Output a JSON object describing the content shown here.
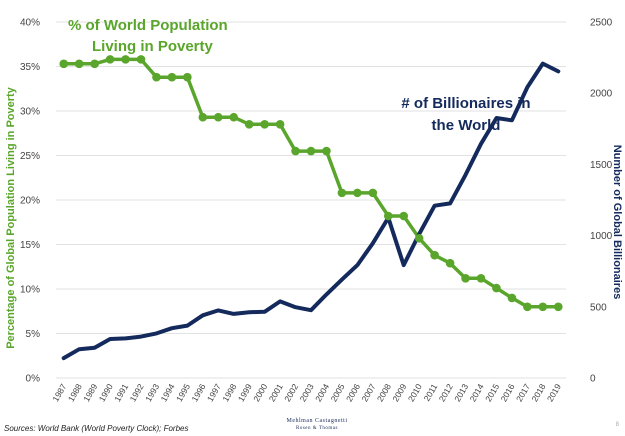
{
  "chart_data": {
    "type": "line",
    "x": [
      "1987",
      "1988",
      "1989",
      "1990",
      "1991",
      "1992",
      "1993",
      "1994",
      "1995",
      "1996",
      "1997",
      "1998",
      "1999",
      "2000",
      "2001",
      "2002",
      "2003",
      "2004",
      "2005",
      "2006",
      "2007",
      "2008",
      "2009",
      "2010",
      "2011",
      "2012",
      "2013",
      "2014",
      "2015",
      "2016",
      "2017",
      "2018",
      "2019"
    ],
    "series": [
      {
        "name": "% of World Population Living in Poverty",
        "axis": "left",
        "color": "#5aa52b",
        "values": [
          35.3,
          35.3,
          35.3,
          35.8,
          35.8,
          35.8,
          33.8,
          33.8,
          33.8,
          29.3,
          29.3,
          29.3,
          28.5,
          28.5,
          28.5,
          25.5,
          25.5,
          25.5,
          20.8,
          20.8,
          20.8,
          18.2,
          18.2,
          15.7,
          13.8,
          12.9,
          11.2,
          11.2,
          10.1,
          9.0,
          8.0,
          8.0,
          8.0
        ]
      },
      {
        "name": "# of Billionaires in the World",
        "axis": "right",
        "color": "#142a5c",
        "values": [
          140,
          202,
          213,
          274,
          278,
          291,
          313,
          350,
          368,
          440,
          475,
          450,
          462,
          465,
          538,
          497,
          476,
          587,
          691,
          793,
          946,
          1125,
          793,
          1011,
          1210,
          1226,
          1426,
          1645,
          1826,
          1810,
          2043,
          2208,
          2153
        ]
      }
    ],
    "left_axis": {
      "label": "Percentage of Global Population Living in Poverty",
      "ticks": [
        "0%",
        "5%",
        "10%",
        "15%",
        "20%",
        "25%",
        "30%",
        "35%",
        "40%"
      ],
      "range": [
        0,
        40
      ]
    },
    "right_axis": {
      "label": "Number of Global Billionaires",
      "ticks": [
        "0",
        "500",
        "1000",
        "1500",
        "2000",
        "2500"
      ],
      "range": [
        0,
        2500
      ]
    },
    "annotations": [
      {
        "text": "% of World Population",
        "color": "#5aa52b"
      },
      {
        "text": "Living in Poverty",
        "color": "#5aa52b"
      },
      {
        "text": "# of Billionaires in",
        "color": "#142a5c"
      },
      {
        "text": "the World",
        "color": "#142a5c"
      }
    ],
    "grid": true,
    "legend": "none"
  },
  "footer": {
    "source": "Sources: World Bank (World Poverty Clock); Forbes",
    "logo_line1": "Mehlman Castagnetti",
    "logo_line2": "Rosen & Thomas",
    "page_number": "8"
  }
}
